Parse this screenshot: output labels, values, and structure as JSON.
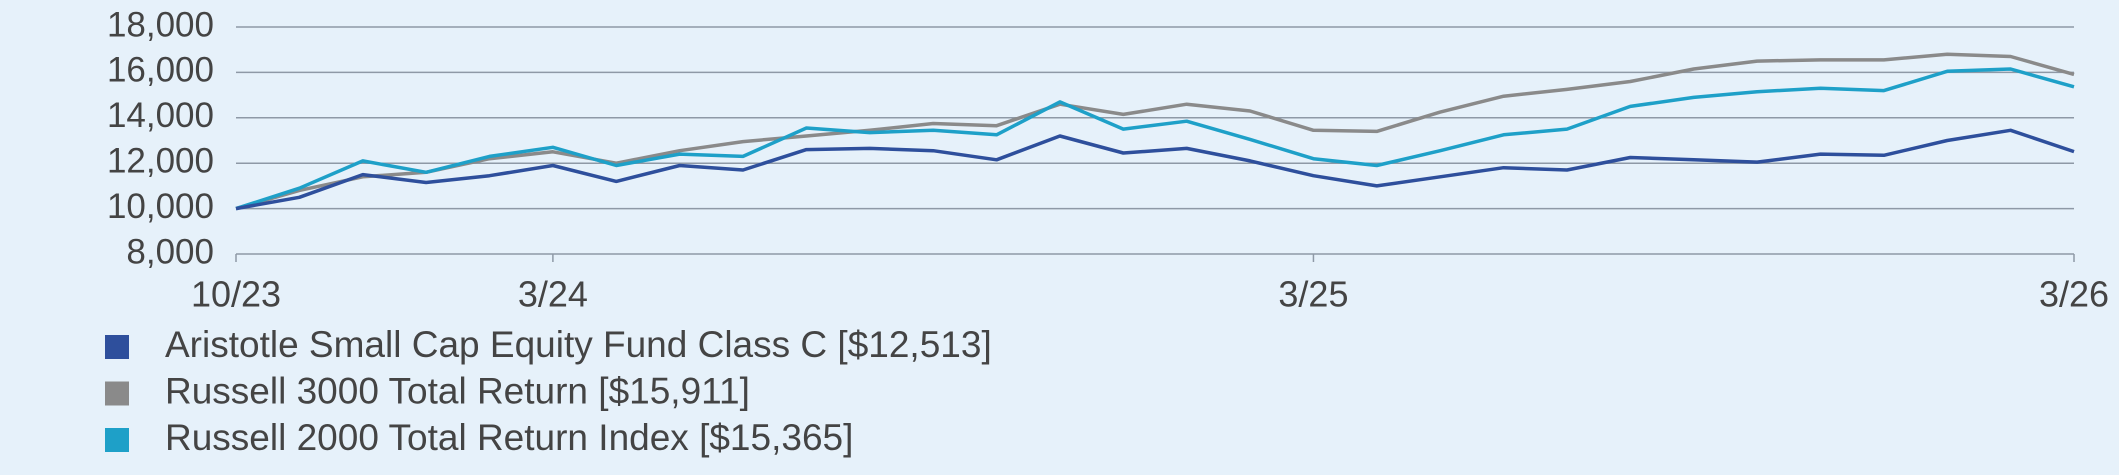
{
  "chart_data": {
    "type": "line",
    "categories": [
      "10/23",
      null,
      null,
      null,
      null,
      "3/24",
      null,
      null,
      null,
      null,
      null,
      null,
      null,
      null,
      null,
      null,
      null,
      "3/25",
      null,
      null,
      null,
      null,
      null,
      null,
      null,
      null,
      null,
      null,
      null,
      "3/26"
    ],
    "series": [
      {
        "name": "Aristotle Small Cap Equity Fund Class C [$12,513]",
        "color": "#2e4f9c",
        "values": [
          10000,
          10500,
          11500,
          11150,
          11450,
          11900,
          11200,
          11900,
          11700,
          12600,
          12650,
          12550,
          12150,
          13200,
          12450,
          12650,
          12100,
          11450,
          11000,
          11400,
          11800,
          11700,
          12250,
          12150,
          12050,
          12400,
          12350,
          13000,
          13450,
          12513
        ]
      },
      {
        "name": "Russell 3000 Total Return [$15,911]",
        "color": "#8a8a8a",
        "values": [
          10000,
          10800,
          11400,
          11600,
          12200,
          12500,
          12000,
          12550,
          12950,
          13200,
          13450,
          13750,
          13650,
          14600,
          14150,
          14600,
          14300,
          13450,
          13400,
          14250,
          14950,
          15250,
          15600,
          16150,
          16500,
          16550,
          16550,
          16800,
          16700,
          15911
        ]
      },
      {
        "name": "Russell 2000 Total Return Index [$15,365]",
        "color": "#1ea0c8",
        "values": [
          10000,
          10900,
          12100,
          11600,
          12300,
          12700,
          11900,
          12400,
          12300,
          13550,
          13350,
          13450,
          13250,
          14700,
          13500,
          13850,
          13050,
          12200,
          11900,
          12550,
          13250,
          13500,
          14500,
          14900,
          15150,
          15300,
          15200,
          16050,
          16150,
          15365
        ]
      }
    ],
    "ylim": [
      8000,
      18000
    ],
    "yticks": [
      {
        "value": 8000,
        "label": "8,000"
      },
      {
        "value": 10000,
        "label": "10,000"
      },
      {
        "value": 12000,
        "label": "12,000"
      },
      {
        "value": 14000,
        "label": "14,000"
      },
      {
        "value": 16000,
        "label": "16,000"
      },
      {
        "value": 18000,
        "label": "18,000"
      }
    ],
    "grid": true
  }
}
